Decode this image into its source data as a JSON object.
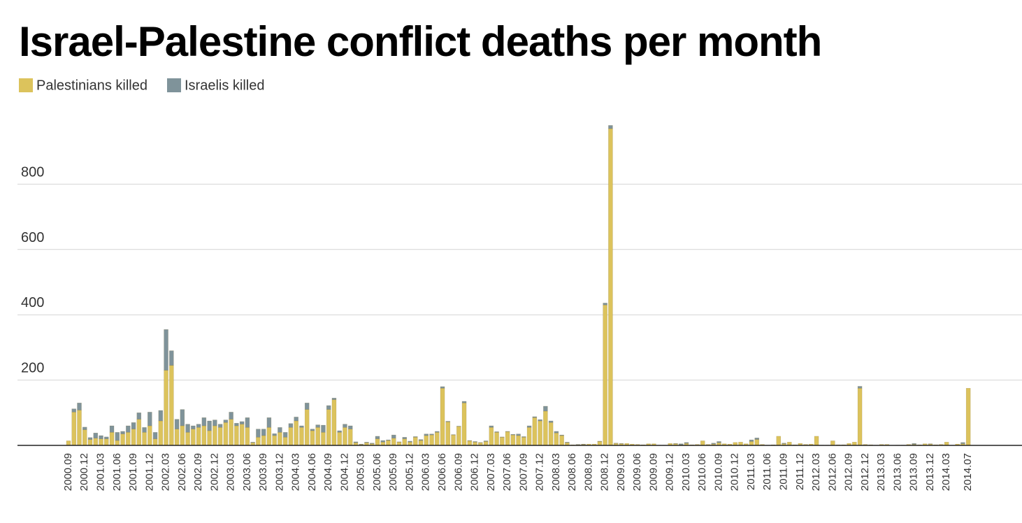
{
  "chart_data": {
    "type": "stacked_bar",
    "title": "Israel-Palestine conflict deaths per month",
    "categories": [
      "2000.09",
      null,
      null,
      "2000.12",
      null,
      null,
      "2001.03",
      null,
      null,
      "2001.06",
      null,
      null,
      "2001.09",
      null,
      null,
      "2001.12",
      null,
      null,
      "2002.03",
      null,
      null,
      "2002.06",
      null,
      null,
      "2002.09",
      null,
      null,
      "2002.12",
      null,
      null,
      "2003.03",
      null,
      null,
      "2003.06",
      null,
      null,
      "2003.09",
      null,
      null,
      "2003.12",
      null,
      null,
      "2004.03",
      null,
      null,
      "2004.06",
      null,
      null,
      "2004.09",
      null,
      null,
      "2004.12",
      null,
      null,
      "2005.03",
      null,
      null,
      "2005.06",
      null,
      null,
      "2005.09",
      null,
      null,
      "2005.12",
      null,
      null,
      "2006.03",
      null,
      null,
      "2006.06",
      null,
      null,
      "2006.09",
      null,
      null,
      "2006.12",
      null,
      null,
      "2007.03",
      null,
      null,
      "2007.06",
      null,
      null,
      "2007.09",
      null,
      null,
      "2007.12",
      null,
      null,
      "2008.03",
      null,
      null,
      "2008.06",
      null,
      null,
      "2008.09",
      null,
      null,
      "2008.12",
      null,
      null,
      "2009.03",
      null,
      null,
      "2009.06",
      null,
      null,
      "2009.09",
      null,
      null,
      "2009.12",
      null,
      null,
      "2010.03",
      null,
      null,
      "2010.06",
      null,
      null,
      "2010.09",
      null,
      null,
      "2010.12",
      null,
      null,
      "2011.03",
      null,
      null,
      "2011.06",
      null,
      null,
      "2011.09",
      null,
      null,
      "2011.12",
      null,
      null,
      "2012.03",
      null,
      null,
      "2012.06",
      null,
      null,
      "2012.09",
      null,
      null,
      "2012.12",
      null,
      null,
      "2013.03",
      null,
      null,
      "2013.06",
      null,
      null,
      "2013.09",
      null,
      null,
      "2013.12",
      null,
      null,
      "2014.03",
      null,
      null,
      null,
      "2014.07"
    ],
    "series": [
      {
        "name": "Palestinians killed",
        "color": "#dcc35c",
        "values": [
          14,
          102,
          108,
          48,
          18,
          22,
          20,
          20,
          40,
          15,
          35,
          40,
          50,
          80,
          40,
          60,
          20,
          75,
          230,
          245,
          50,
          60,
          40,
          50,
          55,
          60,
          45,
          60,
          55,
          70,
          80,
          60,
          65,
          55,
          8,
          25,
          30,
          55,
          30,
          40,
          25,
          55,
          75,
          55,
          110,
          45,
          55,
          40,
          110,
          140,
          40,
          55,
          50,
          8,
          3,
          8,
          5,
          20,
          10,
          15,
          22,
          10,
          20,
          10,
          25,
          15,
          30,
          32,
          40,
          175,
          72,
          32,
          58,
          130,
          14,
          10,
          8,
          12,
          55,
          40,
          25,
          42,
          32,
          30,
          25,
          55,
          85,
          75,
          105,
          70,
          38,
          30,
          8,
          2,
          2,
          3,
          4,
          4,
          12,
          430,
          970,
          6,
          5,
          6,
          4,
          3,
          2,
          5,
          5,
          1,
          1,
          6,
          5,
          2,
          6,
          2,
          3,
          14,
          3,
          4,
          8,
          5,
          4,
          9,
          10,
          5,
          12,
          18,
          3,
          1,
          2,
          28,
          5,
          10,
          2,
          6,
          3,
          4,
          28,
          1,
          1,
          14,
          2,
          2,
          6,
          10,
          175,
          3,
          2,
          1,
          3,
          3,
          0,
          1,
          1,
          3,
          3,
          2,
          5,
          4,
          2,
          3,
          10,
          1,
          4,
          5,
          175
        ]
      },
      {
        "name": "Israelis killed",
        "color": "#7f939a",
        "values": [
          0,
          10,
          22,
          8,
          6,
          16,
          10,
          6,
          20,
          25,
          8,
          20,
          20,
          20,
          15,
          42,
          20,
          32,
          125,
          45,
          30,
          50,
          25,
          10,
          10,
          25,
          30,
          18,
          10,
          8,
          22,
          8,
          8,
          30,
          2,
          25,
          20,
          30,
          6,
          15,
          15,
          12,
          12,
          5,
          20,
          5,
          8,
          22,
          12,
          5,
          5,
          10,
          10,
          3,
          1,
          2,
          2,
          8,
          5,
          2,
          10,
          1,
          5,
          3,
          2,
          3,
          5,
          3,
          3,
          5,
          2,
          1,
          1,
          5,
          1,
          2,
          1,
          2,
          5,
          2,
          1,
          1,
          2,
          5,
          2,
          5,
          3,
          4,
          15,
          5,
          5,
          2,
          2,
          0,
          1,
          1,
          0,
          0,
          1,
          6,
          10,
          1,
          1,
          0,
          0,
          0,
          0,
          0,
          0,
          0,
          0,
          0,
          1,
          3,
          3,
          0,
          0,
          0,
          0,
          3,
          4,
          0,
          0,
          0,
          0,
          0,
          5,
          5,
          0,
          0,
          0,
          0,
          2,
          0,
          0,
          0,
          0,
          0,
          0,
          0,
          0,
          0,
          0,
          0,
          0,
          0,
          6,
          0,
          0,
          0,
          0,
          0,
          0,
          0,
          0,
          0,
          3,
          0,
          0,
          1,
          0,
          0,
          0,
          0,
          0,
          4,
          0
        ]
      }
    ],
    "ylim": [
      0,
      1000
    ],
    "yticks": [
      200,
      400,
      600,
      800
    ],
    "grid": true,
    "legend": "top-left"
  }
}
